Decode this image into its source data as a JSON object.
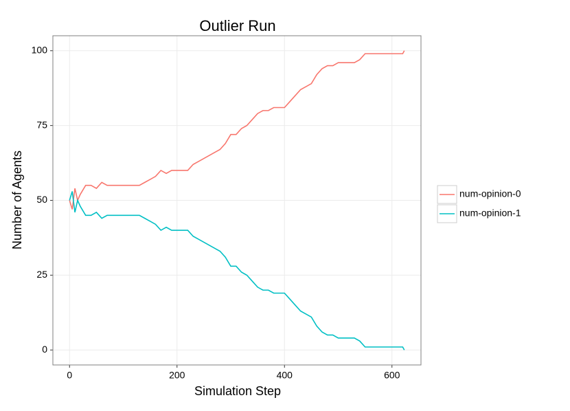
{
  "chart_data": {
    "type": "line",
    "title": "Outlier Run",
    "x_label": "Simulation Step",
    "y_label": "Number of Agents",
    "x": [
      0,
      5,
      10,
      15,
      20,
      30,
      40,
      50,
      60,
      70,
      80,
      90,
      100,
      110,
      120,
      130,
      140,
      150,
      160,
      170,
      180,
      190,
      200,
      210,
      220,
      230,
      240,
      250,
      260,
      270,
      280,
      290,
      300,
      310,
      320,
      330,
      340,
      350,
      360,
      370,
      380,
      390,
      400,
      410,
      420,
      430,
      440,
      450,
      460,
      470,
      480,
      490,
      500,
      510,
      520,
      530,
      540,
      550,
      560,
      570,
      580,
      590,
      600,
      610,
      620,
      623
    ],
    "series": [
      {
        "name": "num-opinion-0",
        "color": "#F8766D",
        "values": [
          50,
          47,
          54,
          50,
          52,
          55,
          55,
          54,
          56,
          55,
          55,
          55,
          55,
          55,
          55,
          55,
          56,
          57,
          58,
          60,
          59,
          60,
          60,
          60,
          60,
          62,
          63,
          64,
          65,
          66,
          67,
          69,
          72,
          72,
          74,
          75,
          77,
          79,
          80,
          80,
          81,
          81,
          81,
          83,
          85,
          87,
          88,
          89,
          92,
          94,
          95,
          95,
          96,
          96,
          96,
          96,
          97,
          99,
          99,
          99,
          99,
          99,
          99,
          99,
          99,
          100
        ]
      },
      {
        "name": "num-opinion-1",
        "color": "#00BFC4",
        "values": [
          50,
          53,
          46,
          50,
          48,
          45,
          45,
          46,
          44,
          45,
          45,
          45,
          45,
          45,
          45,
          45,
          44,
          43,
          42,
          40,
          41,
          40,
          40,
          40,
          40,
          38,
          37,
          36,
          35,
          34,
          33,
          31,
          28,
          28,
          26,
          25,
          23,
          21,
          20,
          20,
          19,
          19,
          19,
          17,
          15,
          13,
          12,
          11,
          8,
          6,
          5,
          5,
          4,
          4,
          4,
          4,
          3,
          1,
          1,
          1,
          1,
          1,
          1,
          1,
          1,
          0
        ]
      }
    ],
    "xlim": [
      -31,
      654
    ],
    "ylim": [
      -5,
      105
    ],
    "xticks": [
      0,
      200,
      400,
      600
    ],
    "yticks": [
      0,
      25,
      50,
      75,
      100
    ],
    "grid": true
  }
}
